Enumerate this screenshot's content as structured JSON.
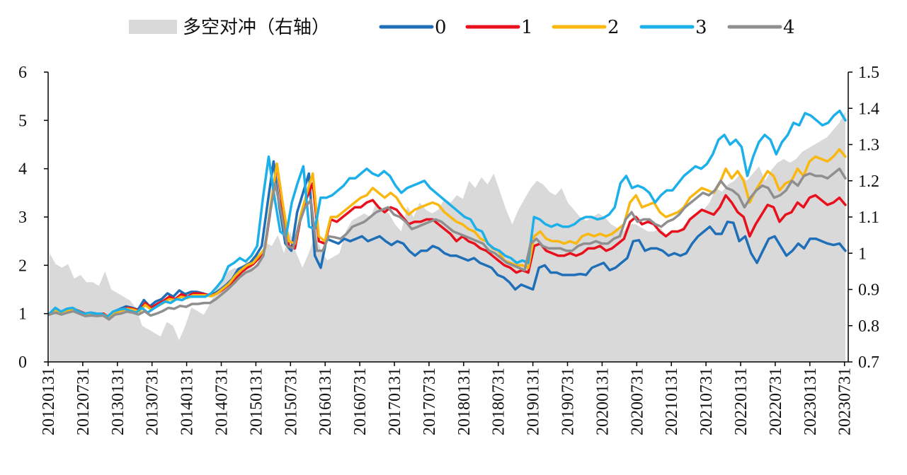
{
  "chart_data": {
    "type": "line",
    "title": "",
    "xlabel": "",
    "ylabel": "",
    "y_left": {
      "min": 0,
      "max": 6,
      "ticks": [
        0,
        1,
        2,
        3,
        4,
        5,
        6
      ]
    },
    "y_right": {
      "min": 0.7,
      "max": 1.5,
      "ticks": [
        "0.7",
        "0.8",
        "0.9",
        "1",
        "1.1",
        "1.2",
        "1.3",
        "1.4",
        "1.5"
      ]
    },
    "x_tick_labels": [
      "20120131",
      "20120731",
      "20130131",
      "20130731",
      "20140131",
      "20140731",
      "20150131",
      "20150731",
      "20160131",
      "20160731",
      "20170131",
      "20170731",
      "20180131",
      "20180731",
      "20190131",
      "20190731",
      "20200131",
      "20200731",
      "20210131",
      "20210731",
      "20220131",
      "20220731",
      "20230131",
      "20230731"
    ],
    "legend_position": "top",
    "area": {
      "name": "多空对冲（右轴）",
      "axis": "right",
      "color": "#d9d9d9",
      "values": [
        1.0,
        0.97,
        0.96,
        0.97,
        0.93,
        0.94,
        0.92,
        0.92,
        0.91,
        0.95,
        0.9,
        0.89,
        0.88,
        0.87,
        0.85,
        0.8,
        0.79,
        0.78,
        0.77,
        0.81,
        0.8,
        0.76,
        0.8,
        0.85,
        0.84,
        0.83,
        0.86,
        0.9,
        0.93,
        0.95,
        0.96,
        0.95,
        0.98,
        0.96,
        0.98,
        1.03,
        1.02,
        1.05,
        1.0,
        1.06,
        1.0,
        0.96,
        1.0,
        1.05,
        1.01,
        0.98,
        0.99,
        1.0,
        1.06,
        1.09,
        1.1,
        1.11,
        1.1,
        1.14,
        1.12,
        1.11,
        1.08,
        1.06,
        1.13,
        1.1,
        1.14,
        1.12,
        1.11,
        1.12,
        1.15,
        1.14,
        1.16,
        1.15,
        1.2,
        1.18,
        1.21,
        1.19,
        1.22,
        1.17,
        1.12,
        1.08,
        1.12,
        1.15,
        1.18,
        1.2,
        1.19,
        1.17,
        1.16,
        1.18,
        1.14,
        1.12,
        1.1,
        1.09,
        1.1,
        1.11,
        1.1,
        1.08,
        1.07,
        1.06,
        1.08,
        1.08,
        1.07,
        1.06,
        1.06,
        1.07,
        1.05,
        1.06,
        1.06,
        1.08,
        1.1,
        1.11,
        1.12,
        1.14,
        1.18,
        1.17,
        1.19,
        1.2,
        1.22,
        1.2,
        1.22,
        1.24,
        1.2,
        1.23,
        1.25,
        1.26,
        1.25,
        1.26,
        1.28,
        1.29,
        1.3,
        1.31,
        1.32,
        1.34,
        1.36,
        1.39
      ]
    },
    "series": [
      {
        "name": "0",
        "color": "#1f6fb8",
        "values": [
          1.0,
          1.08,
          1.02,
          1.08,
          1.1,
          1.05,
          1.0,
          1.02,
          1.0,
          1.0,
          0.92,
          1.05,
          1.1,
          1.15,
          1.12,
          1.08,
          1.28,
          1.15,
          1.25,
          1.3,
          1.42,
          1.35,
          1.48,
          1.4,
          1.45,
          1.45,
          1.42,
          1.38,
          1.42,
          1.5,
          1.6,
          1.72,
          1.92,
          1.98,
          2.05,
          2.2,
          2.4,
          3.3,
          4.15,
          3.2,
          2.45,
          2.3,
          3.1,
          3.5,
          3.9,
          2.2,
          1.95,
          2.55,
          2.5,
          2.45,
          2.55,
          2.5,
          2.55,
          2.6,
          2.5,
          2.55,
          2.6,
          2.5,
          2.42,
          2.5,
          2.45,
          2.3,
          2.2,
          2.3,
          2.3,
          2.4,
          2.35,
          2.25,
          2.2,
          2.2,
          2.15,
          2.1,
          2.15,
          2.05,
          2.0,
          1.95,
          1.8,
          1.75,
          1.65,
          1.5,
          1.6,
          1.55,
          1.5,
          1.95,
          2.0,
          1.85,
          1.85,
          1.8,
          1.8,
          1.8,
          1.82,
          1.8,
          1.95,
          2.0,
          2.05,
          1.9,
          1.95,
          2.05,
          2.15,
          2.5,
          2.52,
          2.3,
          2.35,
          2.35,
          2.3,
          2.2,
          2.25,
          2.2,
          2.25,
          2.45,
          2.6,
          2.7,
          2.8,
          2.65,
          2.65,
          2.9,
          2.88,
          2.5,
          2.6,
          2.25,
          2.05,
          2.3,
          2.55,
          2.6,
          2.4,
          2.2,
          2.3,
          2.45,
          2.35,
          2.55,
          2.55,
          2.5,
          2.45,
          2.42,
          2.45,
          2.3
        ]
      },
      {
        "name": "1",
        "color": "#e8101c",
        "values": [
          1.0,
          1.1,
          1.03,
          1.08,
          1.1,
          1.05,
          1.0,
          1.0,
          0.98,
          1.0,
          0.92,
          1.04,
          1.08,
          1.12,
          1.1,
          1.06,
          1.22,
          1.12,
          1.2,
          1.26,
          1.35,
          1.3,
          1.4,
          1.35,
          1.42,
          1.42,
          1.4,
          1.38,
          1.42,
          1.5,
          1.6,
          1.7,
          1.85,
          1.95,
          2.02,
          2.15,
          2.35,
          3.2,
          4.1,
          3.1,
          2.4,
          2.35,
          3.0,
          3.4,
          3.7,
          2.5,
          2.45,
          2.95,
          2.9,
          3.0,
          3.1,
          3.2,
          3.2,
          3.3,
          3.35,
          3.2,
          3.1,
          3.2,
          3.15,
          3.0,
          2.85,
          2.9,
          2.9,
          2.95,
          2.95,
          2.85,
          2.75,
          2.65,
          2.5,
          2.6,
          2.5,
          2.45,
          2.35,
          2.3,
          2.2,
          2.1,
          2.0,
          1.95,
          1.85,
          1.9,
          1.85,
          2.4,
          2.45,
          2.3,
          2.25,
          2.2,
          2.2,
          2.25,
          2.2,
          2.25,
          2.35,
          2.35,
          2.4,
          2.3,
          2.35,
          2.45,
          2.55,
          2.9,
          3.0,
          2.85,
          2.9,
          2.85,
          2.7,
          2.6,
          2.7,
          2.7,
          2.75,
          2.95,
          3.05,
          3.15,
          3.1,
          3.05,
          3.2,
          3.45,
          3.3,
          3.1,
          3.0,
          2.6,
          2.85,
          3.05,
          3.25,
          3.2,
          2.9,
          3.05,
          3.1,
          3.3,
          3.2,
          3.4,
          3.45,
          3.35,
          3.25,
          3.3,
          3.4,
          3.25
        ]
      },
      {
        "name": "2",
        "color": "#f9b70f",
        "values": [
          1.0,
          1.08,
          1.02,
          1.06,
          1.1,
          1.04,
          0.98,
          0.98,
          0.98,
          0.98,
          0.92,
          1.02,
          1.06,
          1.1,
          1.08,
          1.04,
          1.18,
          1.08,
          1.15,
          1.22,
          1.3,
          1.28,
          1.35,
          1.32,
          1.38,
          1.38,
          1.38,
          1.36,
          1.42,
          1.52,
          1.62,
          1.78,
          1.9,
          2.0,
          2.05,
          2.2,
          2.35,
          3.3,
          4.1,
          3.25,
          2.5,
          2.45,
          3.05,
          3.5,
          3.9,
          2.6,
          2.5,
          3.0,
          3.0,
          3.1,
          3.2,
          3.3,
          3.4,
          3.45,
          3.6,
          3.5,
          3.4,
          3.5,
          3.4,
          3.2,
          3.05,
          3.15,
          3.2,
          3.25,
          3.3,
          3.25,
          3.1,
          3.0,
          2.9,
          2.85,
          2.75,
          2.7,
          2.55,
          2.5,
          2.35,
          2.3,
          2.1,
          2.05,
          2.0,
          2.0,
          1.95,
          2.6,
          2.7,
          2.55,
          2.5,
          2.5,
          2.45,
          2.5,
          2.45,
          2.6,
          2.65,
          2.6,
          2.65,
          2.6,
          2.65,
          2.75,
          2.85,
          3.3,
          3.45,
          3.2,
          3.25,
          3.3,
          3.1,
          3.0,
          3.05,
          3.1,
          3.2,
          3.4,
          3.5,
          3.6,
          3.55,
          3.5,
          3.7,
          4.0,
          3.8,
          3.95,
          3.75,
          3.3,
          3.55,
          3.75,
          3.95,
          3.85,
          3.55,
          3.7,
          3.75,
          4.0,
          3.85,
          4.15,
          4.25,
          4.2,
          4.15,
          4.25,
          4.4,
          4.25
        ]
      },
      {
        "name": "3",
        "color": "#1cb0ea",
        "values": [
          1.0,
          1.12,
          1.04,
          1.1,
          1.12,
          1.05,
          1.0,
          1.02,
          1.0,
          1.0,
          0.93,
          1.04,
          1.08,
          1.1,
          1.06,
          1.02,
          1.12,
          1.02,
          1.1,
          1.18,
          1.25,
          1.22,
          1.3,
          1.28,
          1.35,
          1.35,
          1.35,
          1.35,
          1.42,
          1.55,
          1.7,
          1.98,
          2.05,
          2.15,
          2.08,
          2.2,
          2.4,
          3.4,
          4.25,
          3.4,
          2.7,
          2.6,
          3.3,
          3.7,
          4.05,
          2.8,
          2.75,
          3.4,
          3.4,
          3.45,
          3.55,
          3.65,
          3.8,
          3.8,
          3.9,
          4.0,
          3.9,
          3.85,
          3.95,
          3.85,
          3.65,
          3.5,
          3.6,
          3.65,
          3.7,
          3.75,
          3.6,
          3.5,
          3.4,
          3.3,
          3.2,
          3.1,
          3.0,
          2.95,
          2.75,
          2.7,
          2.45,
          2.35,
          2.3,
          2.2,
          2.15,
          2.05,
          2.1,
          2.05,
          3.0,
          2.95,
          2.85,
          2.8,
          2.85,
          2.8,
          2.8,
          2.85,
          2.95,
          3.0,
          3.0,
          2.95,
          2.98,
          3.05,
          3.2,
          3.7,
          3.85,
          3.6,
          3.65,
          3.6,
          3.5,
          3.3,
          3.45,
          3.55,
          3.55,
          3.7,
          3.85,
          3.95,
          4.05,
          4.0,
          4.1,
          4.3,
          4.6,
          4.7,
          4.5,
          4.6,
          4.45,
          3.85,
          4.25,
          4.55,
          4.7,
          4.6,
          4.3,
          4.55,
          4.7,
          4.95,
          4.9,
          5.15,
          5.1,
          5.0,
          4.9,
          4.95,
          5.1,
          5.2,
          5.0
        ]
      },
      {
        "name": "4",
        "color": "#8f8f8f",
        "values": [
          0.98,
          1.02,
          0.98,
          1.02,
          1.05,
          1.0,
          0.95,
          0.96,
          0.95,
          0.96,
          0.88,
          0.98,
          1.0,
          1.04,
          1.02,
          0.98,
          1.05,
          0.96,
          1.0,
          1.05,
          1.12,
          1.1,
          1.16,
          1.14,
          1.2,
          1.2,
          1.22,
          1.22,
          1.3,
          1.4,
          1.5,
          1.62,
          1.75,
          1.85,
          1.9,
          2.0,
          2.2,
          3.0,
          3.7,
          3.1,
          2.4,
          2.35,
          2.85,
          3.2,
          3.35,
          2.3,
          2.3,
          2.6,
          2.58,
          2.55,
          2.65,
          2.8,
          2.85,
          2.9,
          3.0,
          3.1,
          3.15,
          3.2,
          3.05,
          3.0,
          2.9,
          2.75,
          2.8,
          2.85,
          2.9,
          2.95,
          2.9,
          2.8,
          2.7,
          2.65,
          2.6,
          2.55,
          2.5,
          2.45,
          2.3,
          2.25,
          2.15,
          2.05,
          2.0,
          1.95,
          1.9,
          2.45,
          2.55,
          2.4,
          2.35,
          2.35,
          2.35,
          2.3,
          2.3,
          2.4,
          2.45,
          2.45,
          2.5,
          2.45,
          2.45,
          2.55,
          2.6,
          2.95,
          3.1,
          2.9,
          2.95,
          2.95,
          2.85,
          2.8,
          2.9,
          2.95,
          3.05,
          3.2,
          3.3,
          3.4,
          3.5,
          3.45,
          3.55,
          3.75,
          3.6,
          3.55,
          3.45,
          3.2,
          3.4,
          3.55,
          3.65,
          3.6,
          3.4,
          3.45,
          3.55,
          3.75,
          3.65,
          3.85,
          3.9,
          3.85,
          3.85,
          3.8,
          3.9,
          4.0,
          3.8
        ]
      }
    ]
  }
}
